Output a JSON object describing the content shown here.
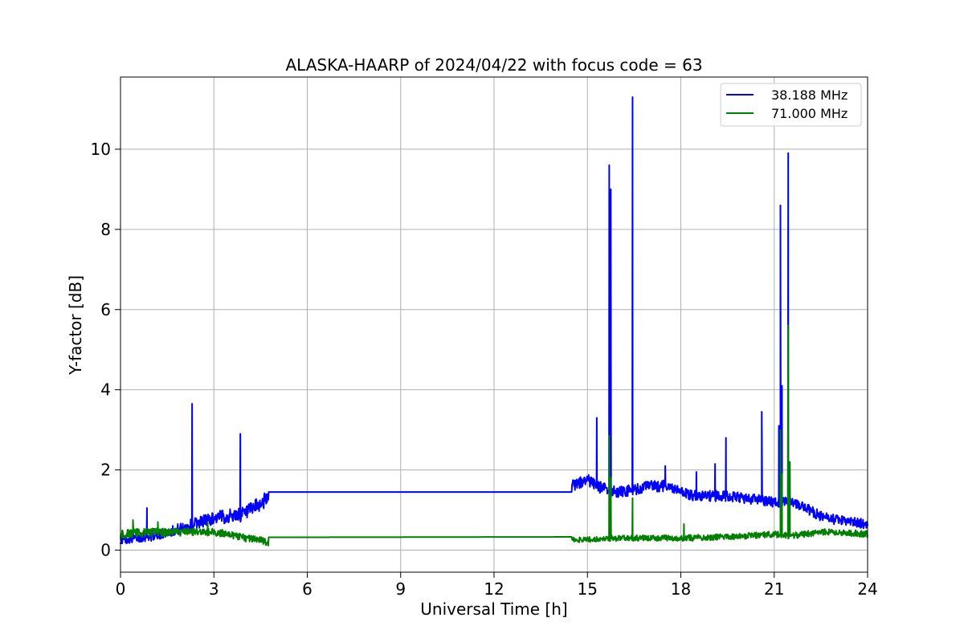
{
  "chart_data": {
    "type": "line",
    "title": "ALASKA-HAARP of 2024/04/22 with focus code = 63",
    "xlabel": "Universal Time [h]",
    "ylabel": "Y-factor [dB]",
    "xlim": [
      0,
      24
    ],
    "ylim": [
      -0.55,
      11.8
    ],
    "xticks": [
      0,
      3,
      6,
      9,
      12,
      15,
      18,
      21,
      24
    ],
    "yticks": [
      0,
      2,
      4,
      6,
      8,
      10
    ],
    "grid": true,
    "legend_position": "top-right",
    "series": [
      {
        "name": "38.188 MHz",
        "color": "#0000ff",
        "baseline": [
          [
            0.0,
            0.25
          ],
          [
            0.5,
            0.3
          ],
          [
            1.0,
            0.35
          ],
          [
            1.5,
            0.45
          ],
          [
            2.0,
            0.55
          ],
          [
            2.5,
            0.7
          ],
          [
            3.0,
            0.8
          ],
          [
            3.5,
            0.85
          ],
          [
            4.0,
            0.9
          ],
          [
            4.4,
            1.1
          ],
          [
            4.75,
            1.3
          ],
          [
            4.76,
            1.45
          ],
          [
            14.5,
            1.45
          ],
          [
            14.51,
            1.6
          ],
          [
            15.0,
            1.75
          ],
          [
            15.3,
            1.6
          ],
          [
            15.8,
            1.45
          ],
          [
            16.5,
            1.5
          ],
          [
            17.0,
            1.6
          ],
          [
            17.5,
            1.6
          ],
          [
            18.0,
            1.45
          ],
          [
            18.5,
            1.35
          ],
          [
            19.0,
            1.35
          ],
          [
            19.5,
            1.35
          ],
          [
            20.0,
            1.3
          ],
          [
            20.5,
            1.25
          ],
          [
            21.0,
            1.2
          ],
          [
            21.5,
            1.2
          ],
          [
            22.0,
            1.05
          ],
          [
            22.5,
            0.85
          ],
          [
            23.0,
            0.75
          ],
          [
            23.5,
            0.7
          ],
          [
            24.0,
            0.65
          ]
        ],
        "spikes": [
          [
            0.85,
            1.05
          ],
          [
            2.3,
            3.65
          ],
          [
            3.85,
            2.9
          ],
          [
            15.3,
            3.3
          ],
          [
            15.7,
            9.6
          ],
          [
            15.75,
            9.0
          ],
          [
            16.45,
            11.3
          ],
          [
            17.5,
            2.1
          ],
          [
            18.5,
            1.95
          ],
          [
            19.1,
            2.15
          ],
          [
            19.45,
            2.8
          ],
          [
            20.6,
            3.45
          ],
          [
            21.15,
            3.1
          ],
          [
            21.2,
            8.6
          ],
          [
            21.25,
            4.1
          ],
          [
            21.45,
            9.9
          ],
          [
            21.5,
            2.2
          ]
        ],
        "noise_amplitude": [
          [
            0.0,
            0.1
          ],
          [
            4.75,
            0.2
          ],
          [
            4.76,
            0.0
          ],
          [
            14.5,
            0.0
          ],
          [
            14.51,
            0.15
          ],
          [
            24.0,
            0.12
          ]
        ]
      },
      {
        "name": "71.000 MHz",
        "color": "#008000",
        "baseline": [
          [
            0.0,
            0.4
          ],
          [
            1.0,
            0.45
          ],
          [
            2.0,
            0.45
          ],
          [
            3.0,
            0.45
          ],
          [
            3.5,
            0.4
          ],
          [
            4.0,
            0.3
          ],
          [
            4.5,
            0.25
          ],
          [
            4.75,
            0.18
          ],
          [
            4.76,
            0.32
          ],
          [
            14.5,
            0.33
          ],
          [
            14.51,
            0.25
          ],
          [
            15.5,
            0.28
          ],
          [
            16.0,
            0.3
          ],
          [
            17.0,
            0.3
          ],
          [
            18.0,
            0.3
          ],
          [
            19.0,
            0.32
          ],
          [
            20.0,
            0.35
          ],
          [
            21.0,
            0.4
          ],
          [
            21.5,
            0.35
          ],
          [
            22.0,
            0.4
          ],
          [
            22.5,
            0.45
          ],
          [
            23.0,
            0.45
          ],
          [
            24.0,
            0.4
          ]
        ],
        "spikes": [
          [
            0.4,
            0.75
          ],
          [
            1.2,
            0.7
          ],
          [
            2.8,
            0.7
          ],
          [
            15.7,
            2.85
          ],
          [
            15.75,
            1.8
          ],
          [
            16.45,
            1.3
          ],
          [
            18.1,
            0.65
          ],
          [
            21.2,
            3.0
          ],
          [
            21.25,
            1.9
          ],
          [
            21.45,
            5.6
          ],
          [
            21.5,
            2.2
          ]
        ],
        "noise_amplitude": [
          [
            0.0,
            0.12
          ],
          [
            4.75,
            0.08
          ],
          [
            4.76,
            0.0
          ],
          [
            14.5,
            0.0
          ],
          [
            14.51,
            0.07
          ],
          [
            24.0,
            0.08
          ]
        ]
      }
    ]
  }
}
